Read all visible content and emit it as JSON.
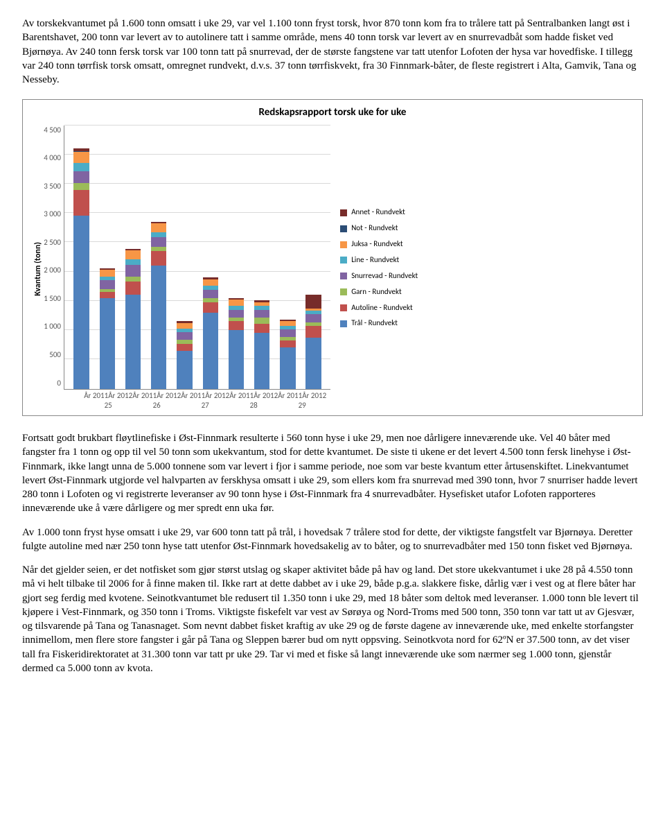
{
  "para1": "Av torskekvantumet på 1.600 tonn omsatt i uke 29, var vel 1.100 tonn fryst torsk, hvor 870 tonn kom fra to trålere tatt på Sentralbanken langt øst i Barentshavet, 200 tonn var levert av to autolinere tatt i samme område, mens 40 tonn torsk var levert av en snurrevadbåt som hadde fisket ved Bjørnøya. Av 240 tonn fersk torsk var 100 tonn tatt på snurrevad, der de største fangstene var tatt utenfor Lofoten der hysa var hovedfiske. I tillegg var 240 tonn tørrfisk torsk omsatt, omregnet rundvekt, d.v.s. 37 tonn tørrfiskvekt, fra 30 Finnmark-båter, de fleste registrert i Alta, Gamvik, Tana og Nesseby.",
  "para2": "Fortsatt godt brukbart fløytlinefiske i Øst-Finnmark resulterte i 560 tonn hyse i uke 29, men noe dårligere inneværende uke. Vel 40 båter med fangster fra 1 tonn og opp til vel 50 tonn som ukekvantum, stod for dette kvantumet. De siste ti ukene er det levert 4.500 tonn fersk linehyse i Øst-Finnmark, ikke langt unna de 5.000 tonnene som var levert i fjor i samme periode, noe som var beste kvantum etter årtusenskiftet. Linekvantumet levert Øst-Finnmark utgjorde vel halvparten av ferskhysa omsatt i uke 29, som ellers kom fra snurrevad med 390 tonn, hvor 7 snurriser hadde levert 280 tonn i Lofoten og vi registrerte leveranser av 90 tonn hyse i Øst-Finnmark fra 4 snurrevadbåter. Hysefisket utafor Lofoten rapporteres inneværende uke å være dårligere og mer spredt enn uka før.",
  "para3": "Av 1.000 tonn fryst hyse omsatt i uke 29, var 600 tonn tatt på trål, i hovedsak 7 trålere stod for dette, der viktigste fangstfelt var Bjørnøya. Deretter fulgte autoline med nær 250 tonn hyse tatt utenfor Øst-Finnmark hovedsakelig av to båter, og to snurrevadbåter med 150 tonn fisket ved Bjørnøya.",
  "para4": "Når det gjelder seien, er det notfisket som gjør størst utslag og skaper aktivitet både på hav og land. Det store ukekvantumet i uke 28 på 4.550 tonn må vi helt tilbake til 2006 for å finne maken til. Ikke rart at dette dabbet av i uke 29, både p.g.a. slakkere fiske, dårlig vær i vest og at flere båter har gjort seg ferdig med kvotene. Seinotkvantumet ble redusert til 1.350 tonn i uke 29, med 18 båter som deltok med leveranser. 1.000 tonn ble levert til kjøpere i Vest-Finnmark, og 350 tonn i Troms. Viktigste fiskefelt var vest av Sørøya og Nord-Troms med 500 tonn, 350 tonn var tatt ut av Gjesvær, og tilsvarende på Tana og Tanasnaget. Som nevnt dabbet fisket kraftig av uke 29 og de første dagene av inneværende uke, med enkelte storfangster innimellom, men flere store fangster i går på Tana og Sleppen bærer bud om nytt oppsving. Seinotkvota nord for 62ºN er 37.500 tonn, av det viser tall fra Fiskeridirektoratet at 31.300 tonn var tatt pr uke 29. Tar vi med et fiske så langt inneværende uke som nærmer seg 1.000 tonn, gjenstår dermed ca 5.000 tonn av kvota.",
  "chart": {
    "type": "stacked-bar",
    "title": "Redskapsrapport torsk uke for uke",
    "ylabel": "Kvantum (tonn)",
    "ymax": 4500,
    "ytick_step": 500,
    "yticks": [
      "4 500",
      "4 000",
      "3 500",
      "3 000",
      "2 500",
      "2 000",
      "1 500",
      "1 000",
      "500",
      "0"
    ],
    "background_color": "#ffffff",
    "grid_color": "#d9d9d9",
    "bar_width": 0.6,
    "series": [
      {
        "key": "tral",
        "label": "Trål - Rundvekt",
        "color": "#4f81bd"
      },
      {
        "key": "autoline",
        "label": "Autoline - Rundvekt",
        "color": "#c0504d"
      },
      {
        "key": "garn",
        "label": "Garn - Rundvekt",
        "color": "#9bbb59"
      },
      {
        "key": "snurrevad",
        "label": "Snurrevad - Rundvekt",
        "color": "#8064a2"
      },
      {
        "key": "line",
        "label": "Line - Rundvekt",
        "color": "#4bacc6"
      },
      {
        "key": "juksa",
        "label": "Juksa - Rundvekt",
        "color": "#f79646"
      },
      {
        "key": "not",
        "label": "Not - Rundvekt",
        "color": "#2c4d75"
      },
      {
        "key": "annet",
        "label": "Annet - Rundvekt",
        "color": "#772c2a"
      }
    ],
    "categories": [
      "År 2011",
      "År 2012",
      "År 2011",
      "År 2012",
      "År 2011",
      "År 2012",
      "År 2011",
      "År 2012",
      "År 2011",
      "År 2012"
    ],
    "groups": [
      "25",
      "26",
      "27",
      "28",
      "29"
    ],
    "data": [
      {
        "tral": 2950,
        "autoline": 440,
        "garn": 120,
        "snurrevad": 200,
        "line": 140,
        "juksa": 200,
        "not": 10,
        "annet": 40
      },
      {
        "tral": 1550,
        "autoline": 100,
        "garn": 50,
        "snurrevad": 150,
        "line": 60,
        "juksa": 120,
        "not": 0,
        "annet": 30
      },
      {
        "tral": 1600,
        "autoline": 230,
        "garn": 80,
        "snurrevad": 200,
        "line": 100,
        "juksa": 150,
        "not": 0,
        "annet": 30
      },
      {
        "tral": 2100,
        "autoline": 250,
        "garn": 70,
        "snurrevad": 170,
        "line": 80,
        "juksa": 150,
        "not": 0,
        "annet": 30
      },
      {
        "tral": 650,
        "autoline": 120,
        "garn": 60,
        "snurrevad": 130,
        "line": 60,
        "juksa": 100,
        "not": 0,
        "annet": 30
      },
      {
        "tral": 1300,
        "autoline": 180,
        "garn": 60,
        "snurrevad": 150,
        "line": 70,
        "juksa": 110,
        "not": 0,
        "annet": 30
      },
      {
        "tral": 1000,
        "autoline": 150,
        "garn": 60,
        "snurrevad": 140,
        "line": 60,
        "juksa": 110,
        "not": 0,
        "annet": 30
      },
      {
        "tral": 950,
        "autoline": 160,
        "garn": 100,
        "snurrevad": 140,
        "line": 70,
        "juksa": 60,
        "not": 0,
        "annet": 30
      },
      {
        "tral": 700,
        "autoline": 120,
        "garn": 60,
        "snurrevad": 130,
        "line": 60,
        "juksa": 80,
        "not": 0,
        "annet": 30
      },
      {
        "tral": 870,
        "autoline": 200,
        "garn": 60,
        "snurrevad": 140,
        "line": 60,
        "juksa": 40,
        "not": 0,
        "annet": 240
      }
    ]
  }
}
